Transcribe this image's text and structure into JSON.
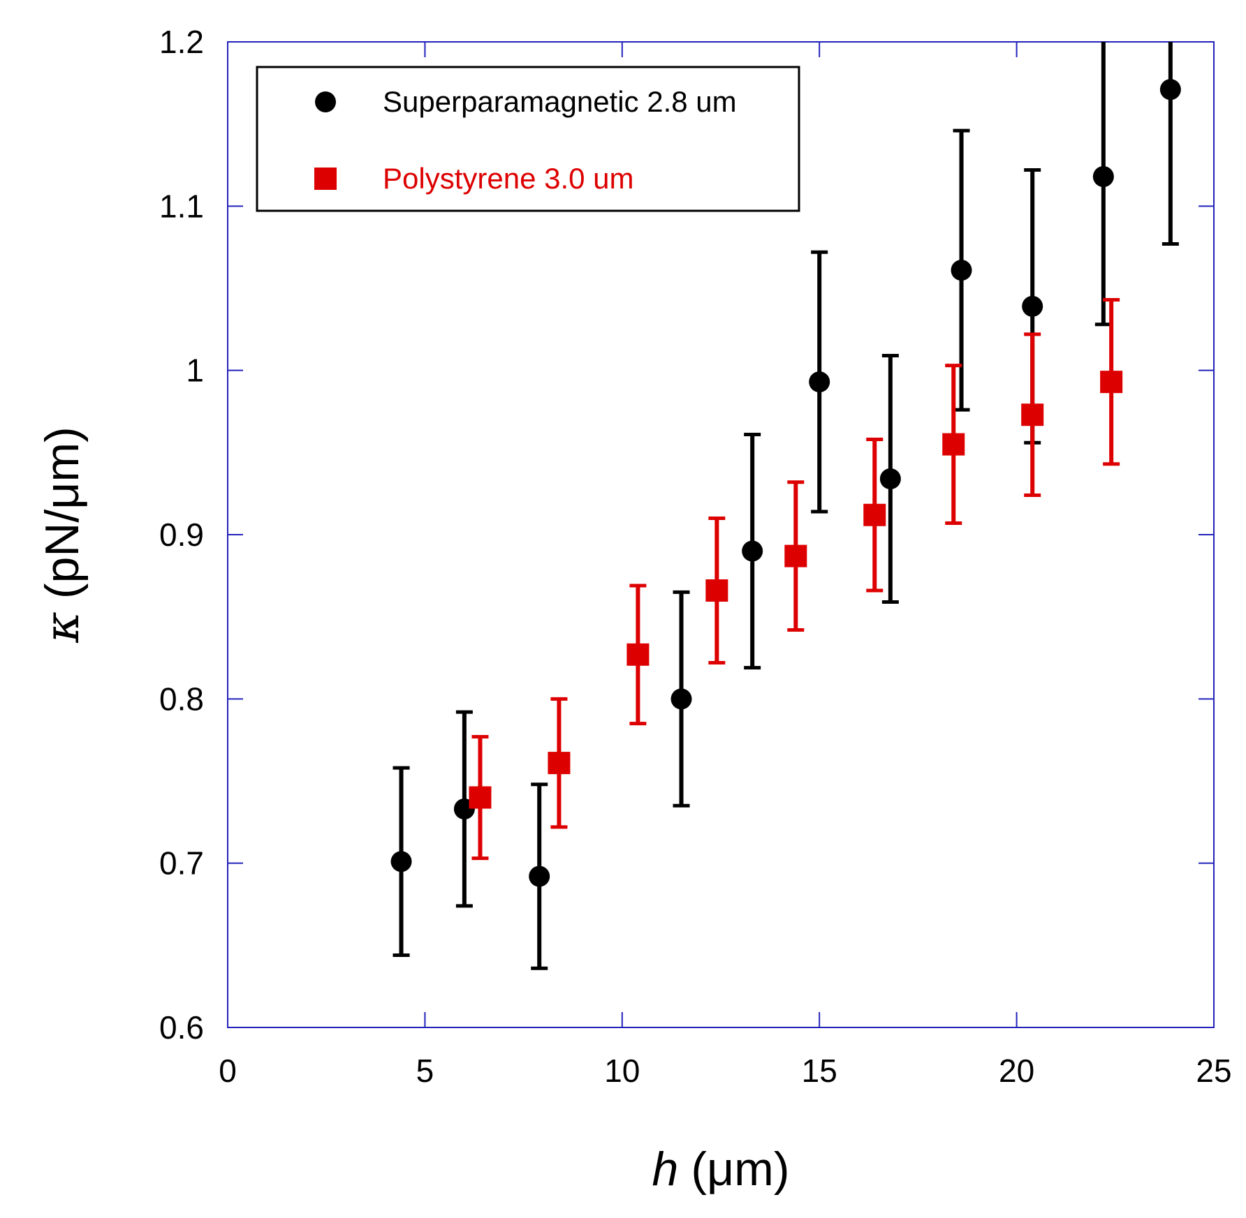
{
  "chart_data": {
    "type": "scatter",
    "title": "",
    "xlabel_symbol": "h",
    "xlabel_unit": "(μm)",
    "ylabel_symbol": "κ",
    "ylabel_unit": "(pN/μm)",
    "xlim": [
      0,
      25
    ],
    "ylim": [
      0.6,
      1.2
    ],
    "xticks": [
      0,
      5,
      10,
      15,
      20,
      25
    ],
    "xtick_labels": [
      "0",
      "5",
      "10",
      "15",
      "20",
      "25"
    ],
    "yticks": [
      0.6,
      0.7,
      0.8,
      0.9,
      1.0,
      1.1,
      1.2
    ],
    "ytick_labels": [
      "0.6",
      "0.7",
      "0.8",
      "0.9",
      "1",
      "1.1",
      "1.2"
    ],
    "grid": false,
    "legend_position": "top-left",
    "axis_color": "#2222bb",
    "series": [
      {
        "name": "Superparamagnetic 2.8 um",
        "marker": "circle",
        "color": "#000000",
        "label_color": "#000000",
        "points": [
          {
            "x": 4.4,
            "y": 0.701,
            "err": 0.057
          },
          {
            "x": 6.0,
            "y": 0.733,
            "err": 0.059
          },
          {
            "x": 7.9,
            "y": 0.692,
            "err": 0.056
          },
          {
            "x": 11.5,
            "y": 0.8,
            "err": 0.065
          },
          {
            "x": 13.3,
            "y": 0.89,
            "err": 0.071
          },
          {
            "x": 15.0,
            "y": 0.993,
            "err": 0.079
          },
          {
            "x": 16.8,
            "y": 0.934,
            "err": 0.075
          },
          {
            "x": 18.6,
            "y": 1.061,
            "err": 0.085
          },
          {
            "x": 20.4,
            "y": 1.039,
            "err": 0.083
          },
          {
            "x": 22.2,
            "y": 1.118,
            "err": 0.09
          },
          {
            "x": 23.9,
            "y": 1.171,
            "err": 0.094
          }
        ]
      },
      {
        "name": "Polystyrene 3.0 um",
        "marker": "square",
        "color": "#dd0000",
        "label_color": "#dd0000",
        "points": [
          {
            "x": 6.4,
            "y": 0.74,
            "err": 0.037
          },
          {
            "x": 8.4,
            "y": 0.761,
            "err": 0.039
          },
          {
            "x": 10.4,
            "y": 0.827,
            "err": 0.042
          },
          {
            "x": 12.4,
            "y": 0.866,
            "err": 0.044
          },
          {
            "x": 14.4,
            "y": 0.887,
            "err": 0.045
          },
          {
            "x": 16.4,
            "y": 0.912,
            "err": 0.046
          },
          {
            "x": 18.4,
            "y": 0.955,
            "err": 0.048
          },
          {
            "x": 20.4,
            "y": 0.973,
            "err": 0.049
          },
          {
            "x": 22.4,
            "y": 0.993,
            "err": 0.05
          }
        ]
      }
    ]
  }
}
